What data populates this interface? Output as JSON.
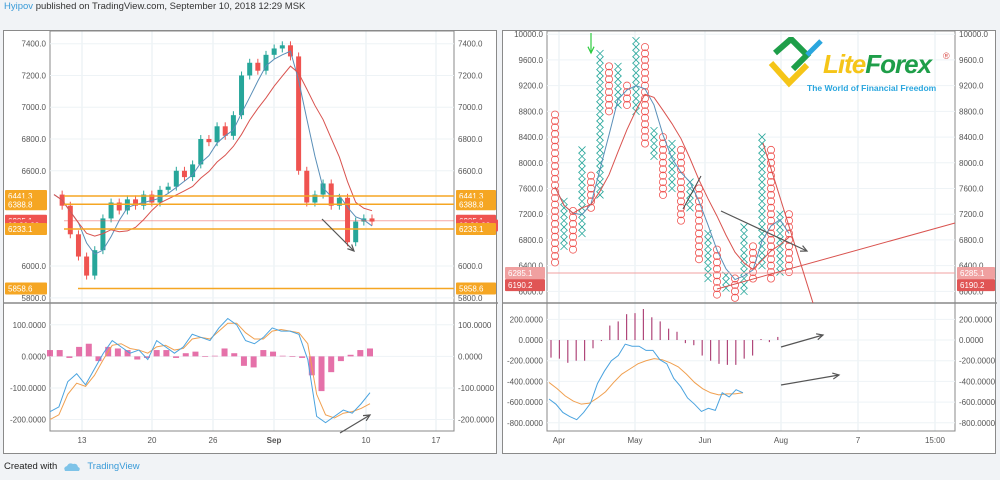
{
  "header": {
    "user": "Hyipov",
    "text": "published on TradingView.com, September 10, 2018 12:29 MSK"
  },
  "footer": {
    "created_with": "Created with",
    "brand": "TradingView"
  },
  "logo": {
    "name": "LiteForex",
    "part1": "Lite",
    "part2": "Forex",
    "tagline": "The World of Financial Freedom",
    "registered": "®"
  },
  "colors": {
    "up": "#26a69a",
    "down": "#ef5350",
    "orange_level": "#f5a623",
    "macd": "#4aa3df",
    "signal": "#f0a050",
    "histogram": "#e0589a",
    "ma_red": "#d9534f",
    "ma_blue": "#5a8fb8",
    "arrow": "#555555",
    "green_arrow": "#2ecc40"
  },
  "chart_data": [
    {
      "type": "candlestick",
      "title": "BTC price (left panel)",
      "y_axis_ticks": [
        "7400.0",
        "7200.0",
        "7000.0",
        "6800.0",
        "6600.0",
        "6000.0",
        "5800.0"
      ],
      "ylim": [
        5780,
        7480
      ],
      "x_ticks": [
        "13",
        "20",
        "26",
        "Sep",
        "10",
        "17"
      ],
      "levels": [
        {
          "label": "6441.3",
          "value": 6441.3,
          "color": "#f5a623"
        },
        {
          "label": "6388.8",
          "value": 6388.8,
          "color": "#f5a623"
        },
        {
          "label": "6285.1",
          "value": 6285.1,
          "color": "#ef5350"
        },
        {
          "label": "02:30:22",
          "value": 6255,
          "color": "#ef5350",
          "kind": "countdown"
        },
        {
          "label": "6233.1",
          "value": 6233.1,
          "color": "#f5a623"
        },
        {
          "label": "5858.6",
          "value": 5858.6,
          "color": "#f5a623"
        }
      ],
      "price_path": [
        [
          0,
          6450
        ],
        [
          4,
          6380
        ],
        [
          8,
          6200
        ],
        [
          12,
          6060
        ],
        [
          16,
          5940
        ],
        [
          20,
          6100
        ],
        [
          24,
          6300
        ],
        [
          28,
          6400
        ],
        [
          32,
          6350
        ],
        [
          36,
          6420
        ],
        [
          40,
          6380
        ],
        [
          44,
          6450
        ],
        [
          48,
          6400
        ],
        [
          52,
          6480
        ],
        [
          56,
          6500
        ],
        [
          60,
          6600
        ],
        [
          64,
          6560
        ],
        [
          68,
          6640
        ],
        [
          72,
          6800
        ],
        [
          76,
          6780
        ],
        [
          80,
          6880
        ],
        [
          84,
          6820
        ],
        [
          88,
          6950
        ],
        [
          92,
          7200
        ],
        [
          96,
          7280
        ],
        [
          100,
          7230
        ],
        [
          104,
          7330
        ],
        [
          108,
          7370
        ],
        [
          112,
          7390
        ],
        [
          116,
          7320
        ],
        [
          120,
          6600
        ],
        [
          124,
          6400
        ],
        [
          128,
          6450
        ],
        [
          132,
          6520
        ],
        [
          136,
          6380
        ],
        [
          140,
          6430
        ],
        [
          144,
          6150
        ],
        [
          148,
          6280
        ],
        [
          152,
          6300
        ],
        [
          156,
          6280
        ]
      ]
    },
    {
      "type": "line",
      "title": "MACD (left panel)",
      "y_axis_ticks": [
        "100.0000",
        "0.0000",
        "-100.0000",
        "-200.0000"
      ],
      "ylim": [
        -230,
        150
      ],
      "x_ticks": [
        "13",
        "20",
        "26",
        "Sep",
        "10",
        "17"
      ],
      "series": [
        {
          "name": "MACD",
          "values": [
            -175,
            -160,
            -80,
            -55,
            -90,
            -40,
            10,
            50,
            30,
            10,
            20,
            -10,
            50,
            30,
            10,
            30,
            70,
            60,
            50,
            90,
            120,
            100,
            50,
            40,
            60,
            90,
            80,
            80,
            70,
            -10,
            -190,
            -210,
            -190,
            -170,
            -180,
            -150,
            -115
          ]
        },
        {
          "name": "Signal",
          "values": [
            -200,
            -185,
            -120,
            -85,
            -95,
            -60,
            -10,
            35,
            40,
            25,
            20,
            10,
            30,
            35,
            20,
            25,
            55,
            60,
            55,
            80,
            105,
            105,
            75,
            55,
            55,
            80,
            85,
            80,
            75,
            40,
            -120,
            -185,
            -195,
            -180,
            -175,
            -165,
            -150
          ]
        },
        {
          "name": "Histogram",
          "values": [
            20,
            20,
            -5,
            30,
            40,
            -15,
            30,
            25,
            20,
            -10,
            -5,
            20,
            20,
            -5,
            10,
            15,
            -2,
            2,
            25,
            10,
            -30,
            -35,
            20,
            15,
            2,
            -2,
            -5,
            -60,
            -110,
            -50,
            -15,
            5,
            20,
            25
          ]
        }
      ]
    },
    {
      "type": "point_and_figure",
      "title": "BTC Point & Figure (right panel)",
      "y_axis_ticks": [
        "10000.0",
        "9600.0",
        "9200.0",
        "8800.0",
        "8400.0",
        "8000.0",
        "7600.0",
        "7200.0",
        "6800.0",
        "6400.0",
        "6000.0"
      ],
      "ylim": [
        5850,
        10050
      ],
      "price_labels": [
        {
          "label": "6285.1",
          "value": 6285.1,
          "color": "#f0a0a0"
        },
        {
          "label": "6190.2",
          "value": 6190.2,
          "color": "#e05555"
        }
      ],
      "columns": [
        {
          "type": "O",
          "high": 8800,
          "low": 6450
        },
        {
          "type": "X",
          "high": 7400,
          "low": 6700
        },
        {
          "type": "O",
          "high": 7300,
          "low": 6650
        },
        {
          "type": "X",
          "high": 8200,
          "low": 6900
        },
        {
          "type": "O",
          "high": 7800,
          "low": 7300
        },
        {
          "type": "X",
          "high": 9700,
          "low": 7500
        },
        {
          "type": "O",
          "high": 9500,
          "low": 8800
        },
        {
          "type": "X",
          "high": 9500,
          "low": 8900
        },
        {
          "type": "O",
          "high": 9200,
          "low": 8900
        },
        {
          "type": "X",
          "high": 9900,
          "low": 8800
        },
        {
          "type": "O",
          "high": 9800,
          "low": 8300
        },
        {
          "type": "X",
          "high": 8500,
          "low": 8100
        },
        {
          "type": "O",
          "high": 8400,
          "low": 7500
        },
        {
          "type": "X",
          "high": 8300,
          "low": 7600
        },
        {
          "type": "O",
          "high": 8200,
          "low": 7100
        },
        {
          "type": "X",
          "high": 7700,
          "low": 7300
        },
        {
          "type": "O",
          "high": 7600,
          "low": 6500
        },
        {
          "type": "X",
          "high": 6900,
          "low": 6200
        },
        {
          "type": "O",
          "high": 6700,
          "low": 5950
        },
        {
          "type": "X",
          "high": 6300,
          "low": 6050
        },
        {
          "type": "O",
          "high": 6200,
          "low": 5900
        },
        {
          "type": "X",
          "high": 7000,
          "low": 6000
        },
        {
          "type": "O",
          "high": 6700,
          "low": 6200
        },
        {
          "type": "X",
          "high": 8400,
          "low": 6400
        },
        {
          "type": "O",
          "high": 8200,
          "low": 6200
        },
        {
          "type": "X",
          "high": 7200,
          "low": 6300
        },
        {
          "type": "O",
          "high": 7200,
          "low": 6300
        }
      ],
      "x_ticks": [
        "Apr",
        "May",
        "Jun",
        "Aug",
        "7",
        "15:00"
      ]
    },
    {
      "type": "line",
      "title": "MACD (right panel)",
      "y_axis_ticks": [
        "200.0000",
        "0.0000",
        "-200.0000",
        "-400.0000",
        "-600.0000",
        "-800.0000"
      ],
      "ylim": [
        -860,
        300
      ],
      "x_ticks": [
        "Apr",
        "May",
        "Jun",
        "Aug",
        "7",
        "15:00"
      ],
      "series": [
        {
          "name": "MACD",
          "values": [
            -570,
            -620,
            -700,
            -740,
            -770,
            -700,
            -610,
            -420,
            -300,
            -200,
            -150,
            -40,
            -60,
            -60,
            -100,
            -100,
            -190,
            -230,
            -370,
            -450,
            -560,
            -620,
            -690,
            -660,
            -680,
            -510,
            -550,
            -480,
            -510
          ]
        },
        {
          "name": "Signal",
          "values": [
            -410,
            -470,
            -540,
            -590,
            -620,
            -610,
            -560,
            -500,
            -410,
            -330,
            -280,
            -230,
            -200,
            -180,
            -190,
            -220,
            -260,
            -330,
            -410,
            -470,
            -510,
            -530,
            -520,
            -520,
            -510
          ]
        },
        {
          "name": "Histogram",
          "values": [
            -170,
            -180,
            -220,
            -200,
            -200,
            -80,
            -10,
            140,
            180,
            250,
            260,
            300,
            220,
            180,
            110,
            80,
            -30,
            -50,
            -150,
            -200,
            -230,
            -240,
            -240,
            -180,
            -150,
            10,
            -20,
            30
          ]
        }
      ]
    }
  ]
}
